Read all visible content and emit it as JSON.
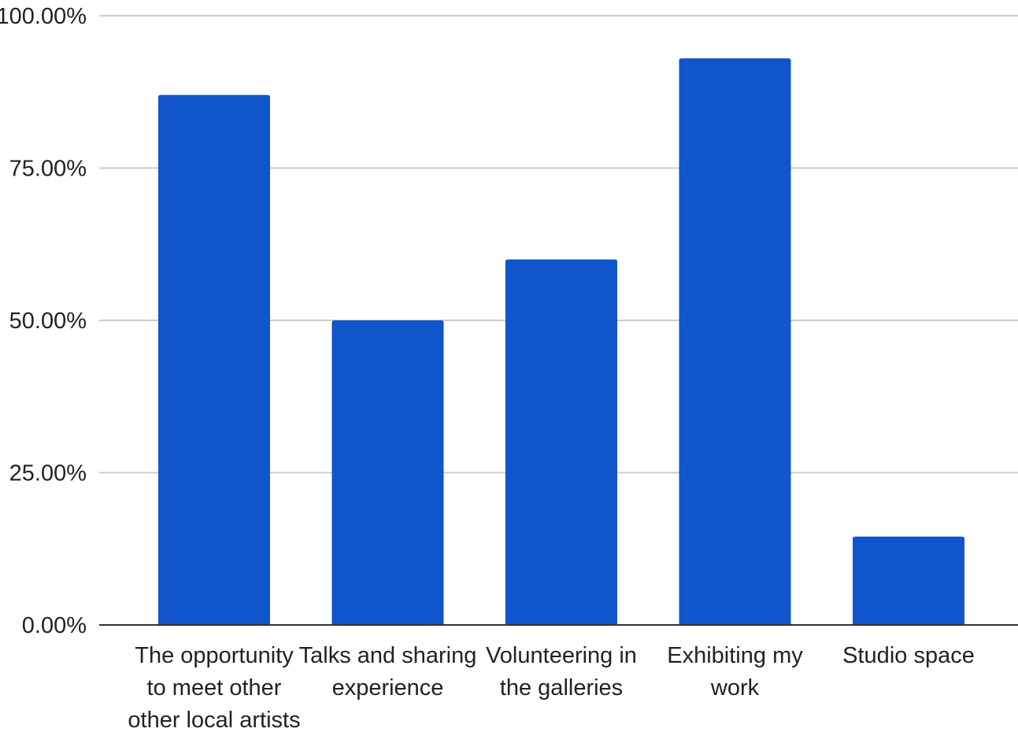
{
  "chart_data": {
    "type": "bar",
    "title": "",
    "xlabel": "",
    "ylabel": "",
    "categories": [
      [
        "The opportunity",
        "to meet other",
        "other local artists"
      ],
      [
        "Talks and sharing",
        "experience"
      ],
      [
        "Volunteering in",
        "the galleries"
      ],
      [
        "Exhibiting my",
        "work"
      ],
      [
        "Studio space"
      ]
    ],
    "values": [
      87.0,
      50.0,
      60.0,
      93.0,
      14.5
    ],
    "ylim": [
      0,
      100
    ],
    "yticks": [
      0,
      25,
      50,
      75,
      100
    ],
    "ytick_labels": [
      "0.00%",
      "25.00%",
      "50.00%",
      "75.00%",
      "100.00%"
    ],
    "grid": true,
    "legend": "none",
    "colors": {
      "bar": "#1155cc",
      "grid": "#cccccc",
      "axis": "#333333",
      "text": "#222222"
    }
  }
}
